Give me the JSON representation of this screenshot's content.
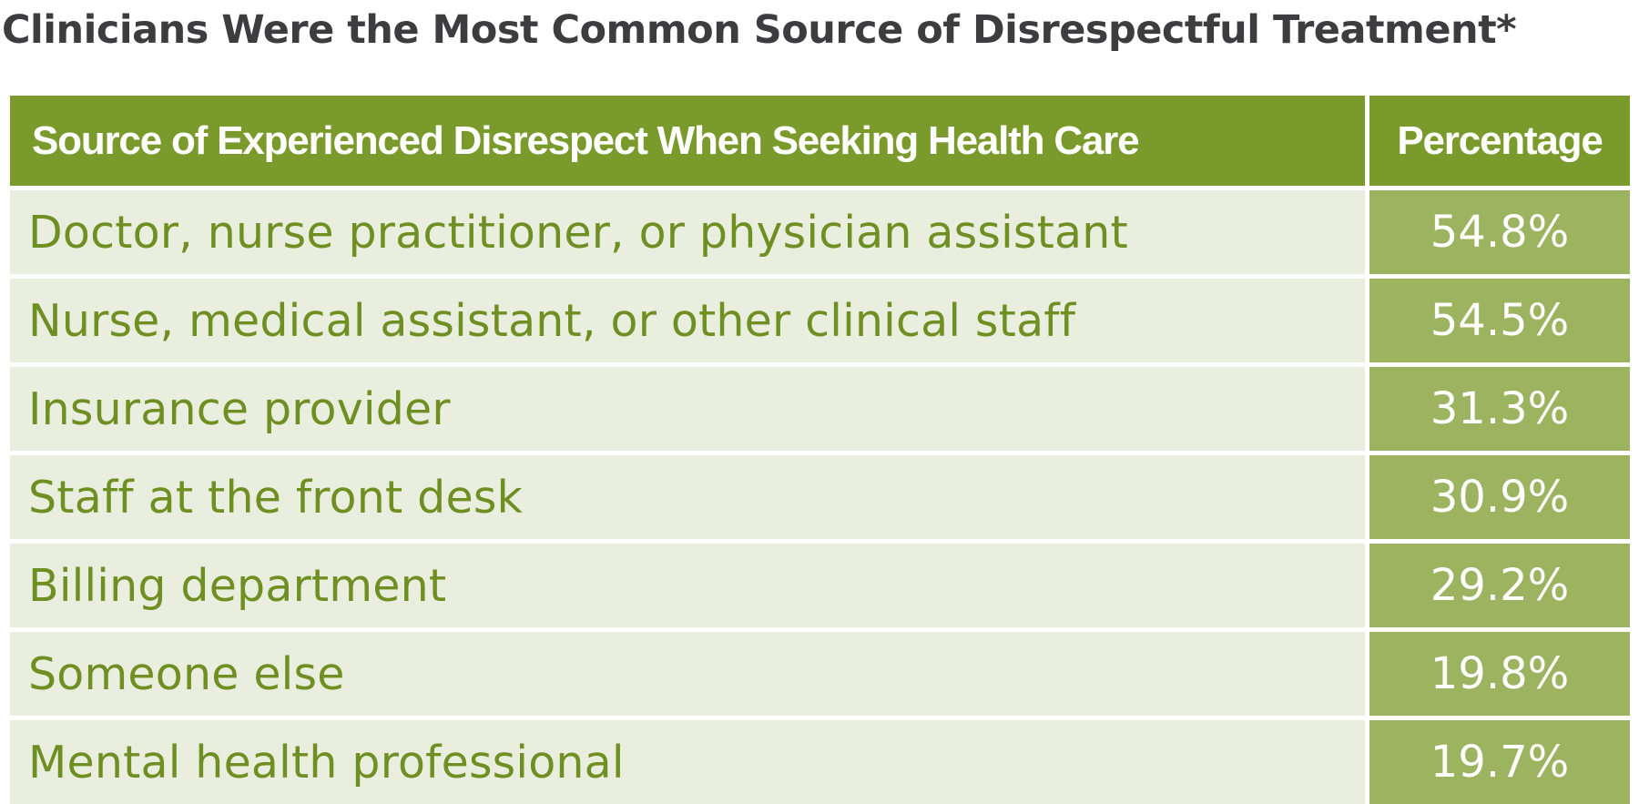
{
  "title": "Clinicians Were the Most Common Source of Disrespectful Treatment*",
  "colors": {
    "header_bg": "#7a9a2c",
    "label_bg": "#e9eedf",
    "label_text": "#6f8f22",
    "value_bg": "#9cb35f",
    "title_text": "#3d3d3f"
  },
  "chart_data": {
    "type": "table",
    "title": "Clinicians Were the Most Common Source of Disrespectful Treatment*",
    "columns": [
      "Source of Experienced Disrespect When Seeking Health Care",
      "Percentage"
    ],
    "rows": [
      {
        "label": "Doctor, nurse practitioner, or physician assistant",
        "value": "54.8%"
      },
      {
        "label": "Nurse, medical assistant, or other clinical staff",
        "value": "54.5%"
      },
      {
        "label": "Insurance provider",
        "value": "31.3%"
      },
      {
        "label": "Staff at the front desk",
        "value": "30.9%"
      },
      {
        "label": "Billing department",
        "value": "29.2%"
      },
      {
        "label": "Someone else",
        "value": "19.8%"
      },
      {
        "label": "Mental health professional",
        "value": "19.7%"
      }
    ]
  }
}
